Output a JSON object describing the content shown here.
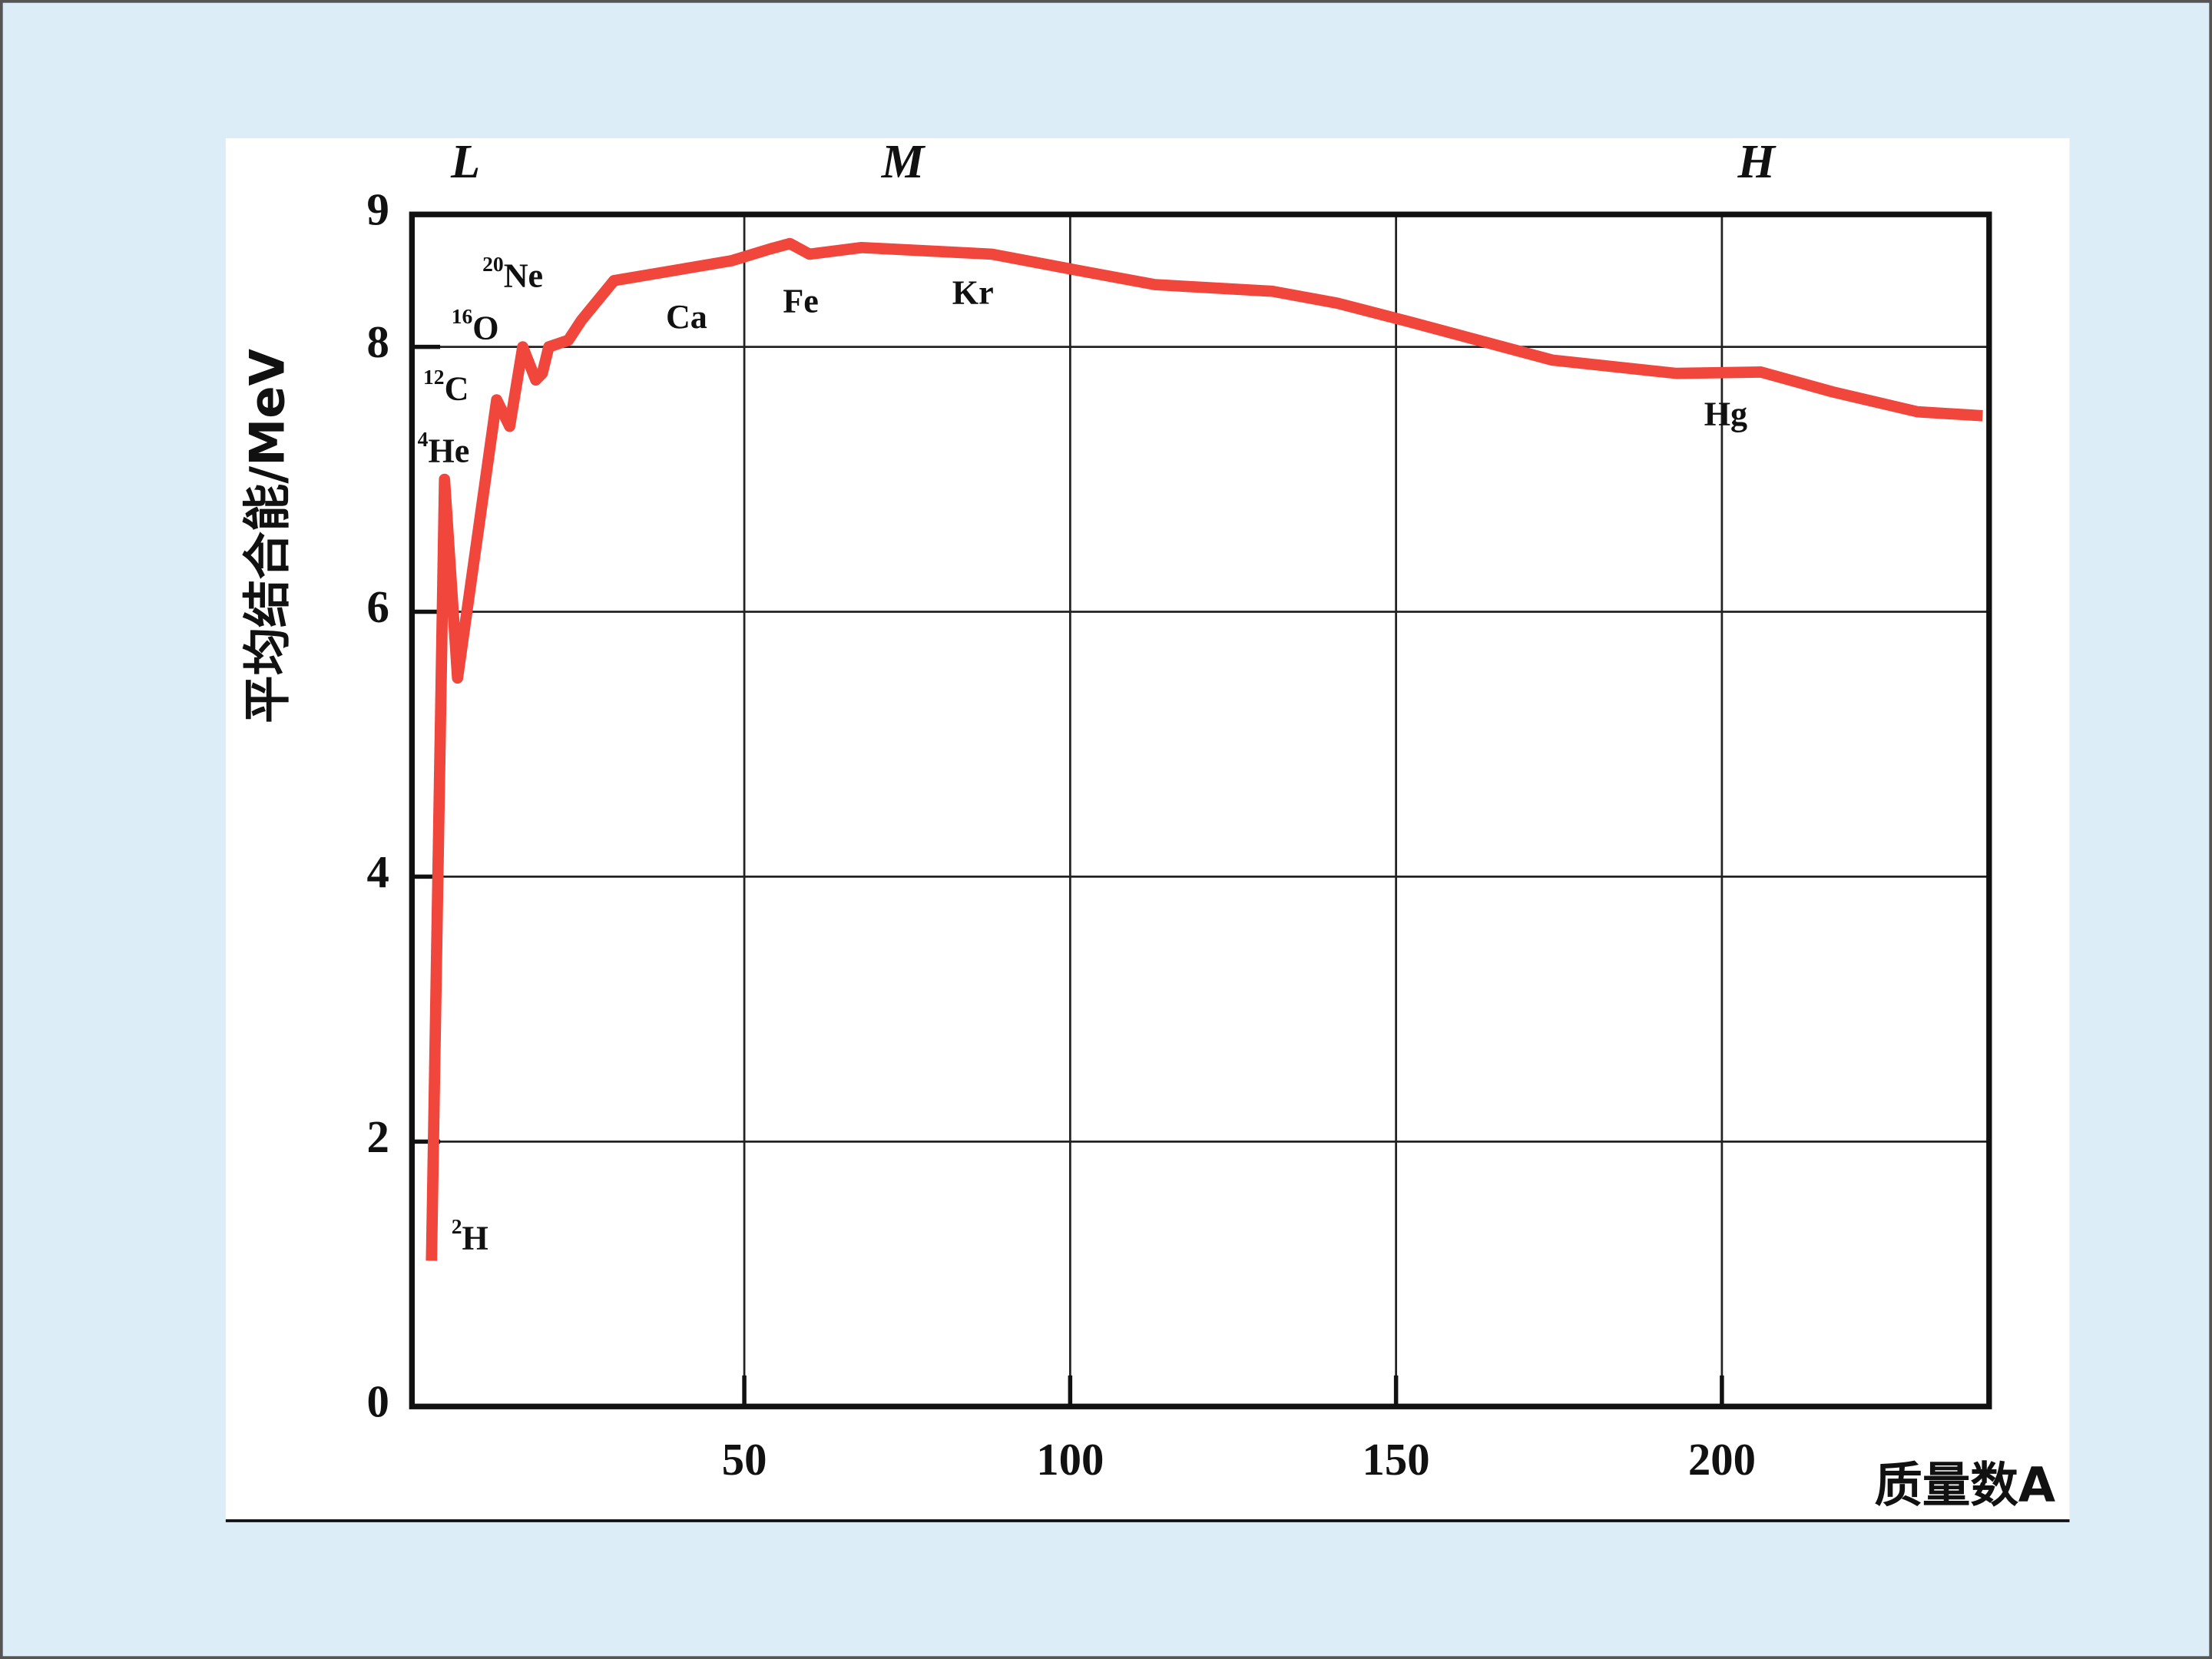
{
  "chart_data": {
    "type": "line",
    "y_label": "平均结合能/MeV",
    "x_label": "质量数A",
    "region_labels": [
      "L",
      "M",
      "H"
    ],
    "annotations": [
      {
        "mass": "2",
        "symbol": "H"
      },
      {
        "mass": "4",
        "symbol": "He"
      },
      {
        "mass": "12",
        "symbol": "C"
      },
      {
        "mass": "16",
        "symbol": "O"
      },
      {
        "mass": "20",
        "symbol": "Ne"
      },
      {
        "symbol": "Ca"
      },
      {
        "symbol": "Fe"
      },
      {
        "symbol": "Kr"
      },
      {
        "symbol": "Hg"
      }
    ],
    "x": [
      2,
      4,
      6,
      12,
      14,
      16,
      18,
      19,
      20,
      23,
      25,
      30,
      48,
      54,
      57,
      60,
      68,
      88,
      102,
      113,
      131,
      141,
      152,
      174,
      193,
      206,
      217,
      230,
      240
    ],
    "series": [
      {
        "color": "#f0463c",
        "values": [
          1.1,
          7.0,
          5.5,
          7.6,
          7.4,
          8.0,
          7.75,
          7.8,
          8.0,
          8.05,
          8.2,
          8.5,
          8.65,
          8.74,
          8.78,
          8.7,
          8.75,
          8.7,
          8.57,
          8.47,
          8.42,
          8.33,
          8.19,
          7.9,
          7.8,
          7.81,
          7.66,
          7.51,
          7.48
        ]
      }
    ],
    "xlim": [
      -1,
      241
    ],
    "ylim": [
      0,
      9
    ],
    "xticks": [
      50,
      100,
      150,
      200
    ],
    "yticks": [
      0,
      2,
      4,
      6,
      8,
      9
    ],
    "grid": true
  }
}
